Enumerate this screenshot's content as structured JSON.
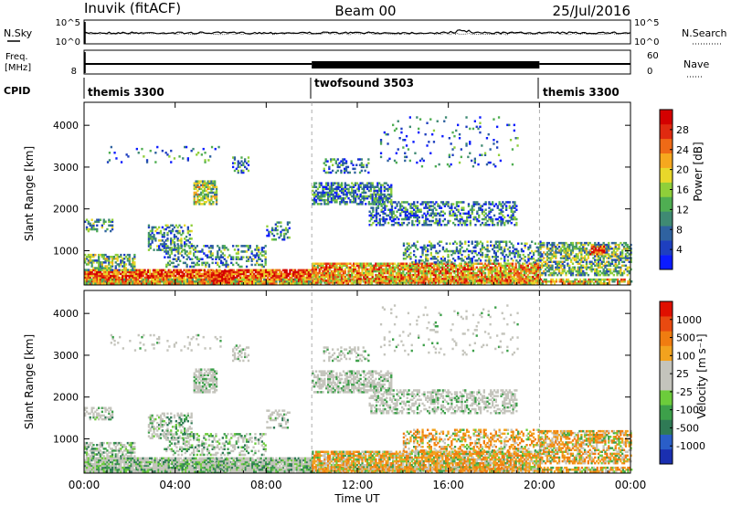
{
  "header": {
    "site": "Inuvik (fitACF)",
    "beam": "Beam 00",
    "date": "25/Jul/2016"
  },
  "chart_data": [
    {
      "type": "line",
      "name": "noise-panel",
      "left_label": "N.Sky",
      "right_label": "N.Search",
      "left_ticks": [
        "10^5",
        "10^0"
      ],
      "right_ticks": [
        "10^5",
        "10^0"
      ],
      "description_values_note": "log-scale noise, roughly flat near top"
    },
    {
      "type": "line",
      "name": "freq-panel",
      "left_label_lines": [
        "Freq.",
        "[MHz]"
      ],
      "right_label": "Nave",
      "left_ticks": [
        "8"
      ],
      "right_ticks": [
        "60",
        "0"
      ],
      "freq_mhz_level": 10,
      "freq_segments_hours": [
        [
          0,
          10
        ],
        [
          10,
          20
        ],
        [
          20,
          24
        ]
      ]
    },
    {
      "type": "table",
      "name": "cpid-bar",
      "label": "CPID",
      "segments": [
        {
          "start": 0,
          "end": 10,
          "text": "themis 3300"
        },
        {
          "start": 10,
          "end": 20,
          "text": "twofsound 3503"
        },
        {
          "start": 20,
          "end": 24,
          "text": "themis 3300"
        }
      ]
    },
    {
      "type": "heatmap",
      "name": "power",
      "ylabel": "Slant Range [km]",
      "yticks": [
        1000,
        2000,
        3000,
        4000
      ],
      "ylim": [
        180,
        4550
      ],
      "xlim": [
        0,
        24
      ],
      "colorbar_label": "Power [dB]",
      "colorbar_ticks": [
        "28",
        "24",
        "20",
        "16",
        "12",
        "8",
        "4"
      ],
      "colors": [
        "#0b1bff",
        "#1e3fbf",
        "#2f62a0",
        "#3f8a73",
        "#4fae52",
        "#8fcf3a",
        "#e8d82a",
        "#f6a81e",
        "#ef6a16",
        "#e02a10",
        "#d40000"
      ]
    },
    {
      "type": "heatmap",
      "name": "velocity",
      "ylabel": "Slant Range [km]",
      "yticks": [
        1000,
        2000,
        3000,
        4000
      ],
      "ylim": [
        180,
        4550
      ],
      "xlim": [
        0,
        24
      ],
      "colorbar_label": "Velocity [m s⁻¹]",
      "colorbar_ticks": [
        "1000",
        "500",
        "100",
        "25",
        "-25",
        "-100",
        "-500",
        "-1000"
      ],
      "colors": [
        "#1a2fb0",
        "#2a5ec8",
        "#2f7a55",
        "#3da04a",
        "#6ccc3b",
        "#c4c4bc",
        "#c4c4bc",
        "#f2a21e",
        "#f07c10",
        "#e84a10",
        "#e01000"
      ]
    }
  ],
  "x_axis": {
    "ticks": [
      "00:00",
      "04:00",
      "08:00",
      "12:00",
      "16:00",
      "20:00",
      "00:00"
    ],
    "label": "Time UT"
  },
  "mode_boundaries_hours": [
    10,
    20
  ]
}
